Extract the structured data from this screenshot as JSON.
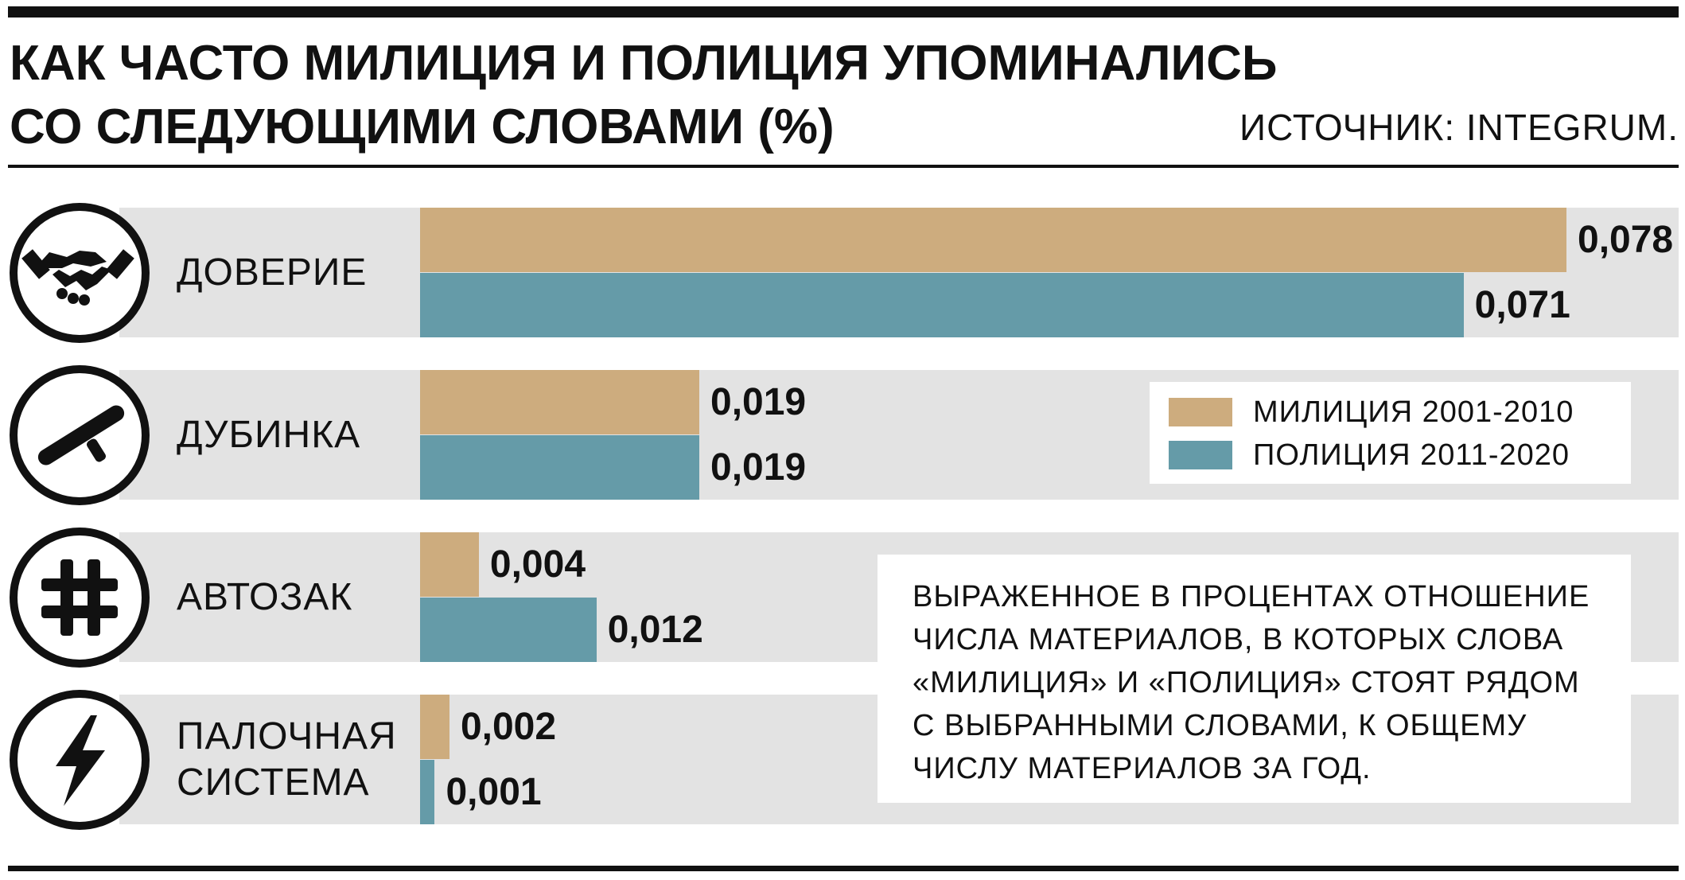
{
  "header": {
    "title_lines": [
      "КАК ЧАСТО МИЛИЦИЯ И ПОЛИЦИЯ УПОМИНАЛИСЬ",
      "СО СЛЕДУЮЩИМИ СЛОВАМИ (%)"
    ],
    "source": "ИСТОЧНИК: INTEGRUM."
  },
  "legend": {
    "items": [
      {
        "label": "МИЛИЦИЯ 2001-2010",
        "color": "#cdac7e"
      },
      {
        "label": "ПОЛИЦИЯ 2011-2020",
        "color": "#659ba8"
      }
    ]
  },
  "note": {
    "lines": [
      "ВЫРАЖЕННОЕ В ПРОЦЕНТАХ ОТНОШЕНИЕ",
      "ЧИСЛА МАТЕРИАЛОВ, В КОТОРЫХ СЛОВА",
      "«МИЛИЦИЯ» И «ПОЛИЦИЯ» СТОЯТ РЯДОМ",
      "С ВЫБРАННЫМИ СЛОВАМИ, К ОБЩЕМУ",
      "ЧИСЛУ МАТЕРИАЛОВ ЗА ГОД."
    ]
  },
  "chart_data": {
    "type": "bar",
    "orientation": "horizontal",
    "title": "КАК ЧАСТО МИЛИЦИЯ И ПОЛИЦИЯ УПОМИНАЛИСЬ СО СЛЕДУЮЩИМИ СЛОВАМИ (%)",
    "categories": [
      {
        "label_lines": [
          "ДОВЕРИЕ"
        ],
        "icon": "handshake-icon"
      },
      {
        "label_lines": [
          "ДУБИНКА"
        ],
        "icon": "baton-icon"
      },
      {
        "label_lines": [
          "АВТОЗАК"
        ],
        "icon": "grid-icon"
      },
      {
        "label_lines": [
          "ПАЛОЧНАЯ",
          "СИСТЕМА"
        ],
        "icon": "lightning-icon"
      }
    ],
    "series": [
      {
        "name": "МИЛИЦИЯ 2001-2010",
        "color": "#cdac7e",
        "values": [
          0.078,
          0.019,
          0.004,
          0.002
        ],
        "labels": [
          "0,078",
          "0,019",
          "0,004",
          "0,002"
        ]
      },
      {
        "name": "ПОЛИЦИЯ 2011-2020",
        "color": "#659ba8",
        "values": [
          0.071,
          0.019,
          0.012,
          0.001
        ],
        "labels": [
          "0,071",
          "0,019",
          "0,012",
          "0,001"
        ]
      }
    ],
    "xlim": [
      0,
      0.078
    ],
    "grid": false,
    "legend_position": "center-right"
  }
}
